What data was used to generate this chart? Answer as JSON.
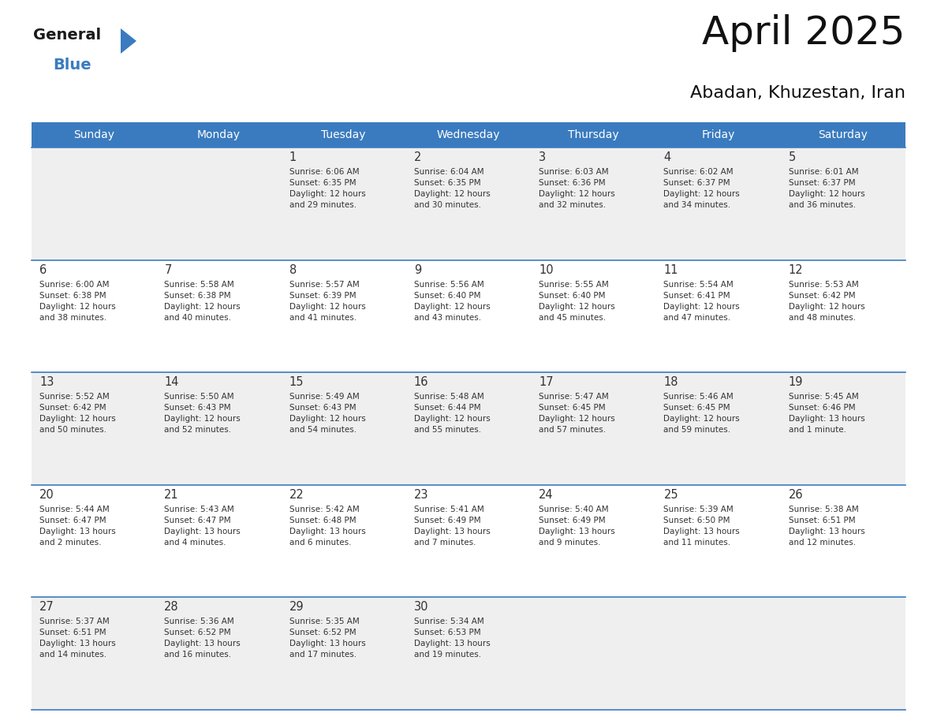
{
  "title": "April 2025",
  "subtitle": "Abadan, Khuzestan, Iran",
  "header_color": "#3a7bbf",
  "header_text_color": "#ffffff",
  "cell_bg_week1": "#efefef",
  "cell_bg_week2": "#ffffff",
  "cell_bg_week3": "#efefef",
  "cell_bg_week4": "#ffffff",
  "cell_bg_week5": "#efefef",
  "border_color": "#3a7bbf",
  "text_color": "#333333",
  "days_of_week": [
    "Sunday",
    "Monday",
    "Tuesday",
    "Wednesday",
    "Thursday",
    "Friday",
    "Saturday"
  ],
  "weeks": [
    [
      {
        "day": "",
        "info": ""
      },
      {
        "day": "",
        "info": ""
      },
      {
        "day": "1",
        "info": "Sunrise: 6:06 AM\nSunset: 6:35 PM\nDaylight: 12 hours\nand 29 minutes."
      },
      {
        "day": "2",
        "info": "Sunrise: 6:04 AM\nSunset: 6:35 PM\nDaylight: 12 hours\nand 30 minutes."
      },
      {
        "day": "3",
        "info": "Sunrise: 6:03 AM\nSunset: 6:36 PM\nDaylight: 12 hours\nand 32 minutes."
      },
      {
        "day": "4",
        "info": "Sunrise: 6:02 AM\nSunset: 6:37 PM\nDaylight: 12 hours\nand 34 minutes."
      },
      {
        "day": "5",
        "info": "Sunrise: 6:01 AM\nSunset: 6:37 PM\nDaylight: 12 hours\nand 36 minutes."
      }
    ],
    [
      {
        "day": "6",
        "info": "Sunrise: 6:00 AM\nSunset: 6:38 PM\nDaylight: 12 hours\nand 38 minutes."
      },
      {
        "day": "7",
        "info": "Sunrise: 5:58 AM\nSunset: 6:38 PM\nDaylight: 12 hours\nand 40 minutes."
      },
      {
        "day": "8",
        "info": "Sunrise: 5:57 AM\nSunset: 6:39 PM\nDaylight: 12 hours\nand 41 minutes."
      },
      {
        "day": "9",
        "info": "Sunrise: 5:56 AM\nSunset: 6:40 PM\nDaylight: 12 hours\nand 43 minutes."
      },
      {
        "day": "10",
        "info": "Sunrise: 5:55 AM\nSunset: 6:40 PM\nDaylight: 12 hours\nand 45 minutes."
      },
      {
        "day": "11",
        "info": "Sunrise: 5:54 AM\nSunset: 6:41 PM\nDaylight: 12 hours\nand 47 minutes."
      },
      {
        "day": "12",
        "info": "Sunrise: 5:53 AM\nSunset: 6:42 PM\nDaylight: 12 hours\nand 48 minutes."
      }
    ],
    [
      {
        "day": "13",
        "info": "Sunrise: 5:52 AM\nSunset: 6:42 PM\nDaylight: 12 hours\nand 50 minutes."
      },
      {
        "day": "14",
        "info": "Sunrise: 5:50 AM\nSunset: 6:43 PM\nDaylight: 12 hours\nand 52 minutes."
      },
      {
        "day": "15",
        "info": "Sunrise: 5:49 AM\nSunset: 6:43 PM\nDaylight: 12 hours\nand 54 minutes."
      },
      {
        "day": "16",
        "info": "Sunrise: 5:48 AM\nSunset: 6:44 PM\nDaylight: 12 hours\nand 55 minutes."
      },
      {
        "day": "17",
        "info": "Sunrise: 5:47 AM\nSunset: 6:45 PM\nDaylight: 12 hours\nand 57 minutes."
      },
      {
        "day": "18",
        "info": "Sunrise: 5:46 AM\nSunset: 6:45 PM\nDaylight: 12 hours\nand 59 minutes."
      },
      {
        "day": "19",
        "info": "Sunrise: 5:45 AM\nSunset: 6:46 PM\nDaylight: 13 hours\nand 1 minute."
      }
    ],
    [
      {
        "day": "20",
        "info": "Sunrise: 5:44 AM\nSunset: 6:47 PM\nDaylight: 13 hours\nand 2 minutes."
      },
      {
        "day": "21",
        "info": "Sunrise: 5:43 AM\nSunset: 6:47 PM\nDaylight: 13 hours\nand 4 minutes."
      },
      {
        "day": "22",
        "info": "Sunrise: 5:42 AM\nSunset: 6:48 PM\nDaylight: 13 hours\nand 6 minutes."
      },
      {
        "day": "23",
        "info": "Sunrise: 5:41 AM\nSunset: 6:49 PM\nDaylight: 13 hours\nand 7 minutes."
      },
      {
        "day": "24",
        "info": "Sunrise: 5:40 AM\nSunset: 6:49 PM\nDaylight: 13 hours\nand 9 minutes."
      },
      {
        "day": "25",
        "info": "Sunrise: 5:39 AM\nSunset: 6:50 PM\nDaylight: 13 hours\nand 11 minutes."
      },
      {
        "day": "26",
        "info": "Sunrise: 5:38 AM\nSunset: 6:51 PM\nDaylight: 13 hours\nand 12 minutes."
      }
    ],
    [
      {
        "day": "27",
        "info": "Sunrise: 5:37 AM\nSunset: 6:51 PM\nDaylight: 13 hours\nand 14 minutes."
      },
      {
        "day": "28",
        "info": "Sunrise: 5:36 AM\nSunset: 6:52 PM\nDaylight: 13 hours\nand 16 minutes."
      },
      {
        "day": "29",
        "info": "Sunrise: 5:35 AM\nSunset: 6:52 PM\nDaylight: 13 hours\nand 17 minutes."
      },
      {
        "day": "30",
        "info": "Sunrise: 5:34 AM\nSunset: 6:53 PM\nDaylight: 13 hours\nand 19 minutes."
      },
      {
        "day": "",
        "info": ""
      },
      {
        "day": "",
        "info": ""
      },
      {
        "day": "",
        "info": ""
      }
    ]
  ],
  "logo_general_color": "#1a1a1a",
  "logo_blue_color": "#3a7bbf",
  "week_bg_colors": [
    "#efefef",
    "#ffffff",
    "#efefef",
    "#ffffff",
    "#efefef"
  ]
}
